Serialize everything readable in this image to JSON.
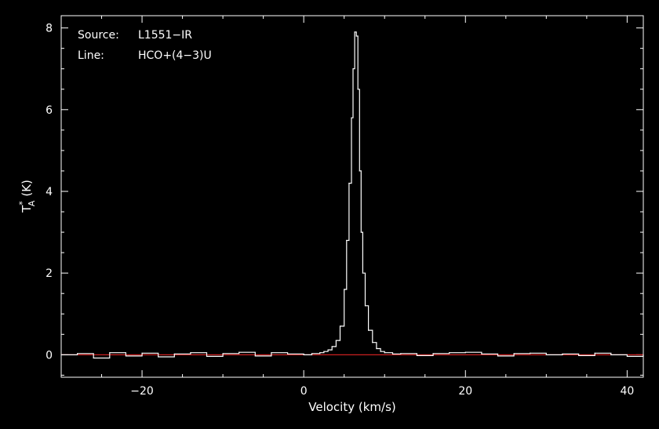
{
  "chart_data": {
    "type": "line",
    "annotations": [
      {
        "label": "Source:",
        "value": "L1551−IR"
      },
      {
        "label": "Line:",
        "value": "HCO+(4−3)U"
      }
    ],
    "xlabel": "Velocity (km/s)",
    "ylabel": {
      "base": "T",
      "sub": "A",
      "sup": "*",
      "unit": "(K)"
    },
    "xlim": [
      -30,
      42
    ],
    "ylim": [
      -0.55,
      8.3
    ],
    "xticks": [
      -20,
      0,
      20,
      40
    ],
    "xtick_labels": [
      "−20",
      "0",
      "20",
      "40"
    ],
    "yticks": [
      0,
      2,
      4,
      6,
      8
    ],
    "ytick_labels": [
      "0",
      "2",
      "4",
      "6",
      "8"
    ],
    "grid": false,
    "colors": {
      "background": "#000000",
      "axes": "#ffffff",
      "spectrum": "#ffffff",
      "baseline": "#cc2020"
    },
    "baseline": {
      "name": "baseline",
      "y": 0
    },
    "series": [
      {
        "x": [
          -30,
          -28,
          -26,
          -24,
          -22,
          -20,
          -18,
          -16,
          -14,
          -12,
          -10,
          -8,
          -6,
          -4,
          -2,
          0,
          1,
          2,
          2.5,
          3,
          3.5,
          4,
          4.5,
          5,
          5.3,
          5.6,
          5.9,
          6.1,
          6.3,
          6.5,
          6.7,
          6.9,
          7.1,
          7.3,
          7.6,
          8,
          8.5,
          9,
          9.5,
          10,
          11,
          12,
          14,
          16,
          18,
          20,
          22,
          24,
          26,
          28,
          30,
          32,
          34,
          36,
          38,
          40,
          42
        ],
        "values": [
          0.0,
          0.03,
          -0.08,
          0.05,
          -0.03,
          0.04,
          -0.05,
          0.02,
          0.05,
          -0.04,
          0.03,
          0.06,
          -0.03,
          0.05,
          0.02,
          0.0,
          0.03,
          0.05,
          0.08,
          0.12,
          0.2,
          0.35,
          0.7,
          1.6,
          2.8,
          4.2,
          5.8,
          7.0,
          7.9,
          7.8,
          6.5,
          4.5,
          3.0,
          2.0,
          1.2,
          0.6,
          0.3,
          0.15,
          0.08,
          0.05,
          0.02,
          0.03,
          -0.02,
          0.03,
          0.05,
          0.06,
          0.02,
          -0.03,
          0.03,
          0.04,
          0.0,
          0.02,
          -0.02,
          0.04,
          0.0,
          -0.04,
          0.0
        ]
      }
    ]
  }
}
